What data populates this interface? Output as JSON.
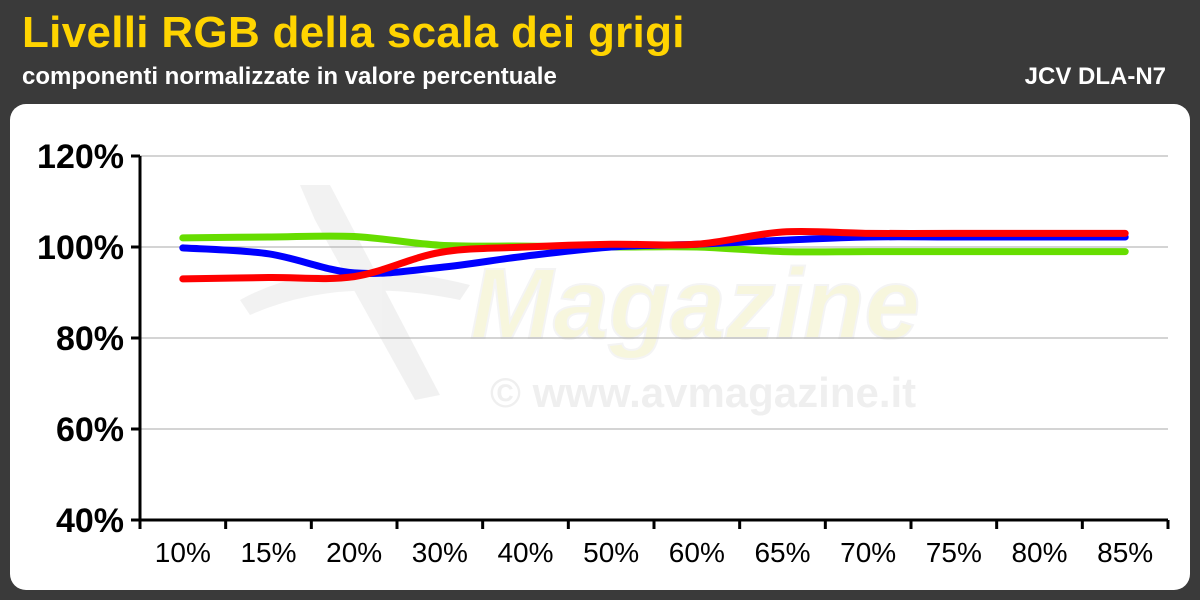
{
  "header": {
    "title": "Livelli RGB della scala dei grigi",
    "subtitle": "componenti normalizzate in valore percentuale",
    "model": "JCV DLA-N7"
  },
  "watermark": {
    "brand": "Magazine",
    "url": "© www.avmagazine.it"
  },
  "chart_data": {
    "type": "line",
    "title": "Livelli RGB della scala dei grigi",
    "subtitle": "componenti normalizzate in valore percentuale",
    "categories": [
      "10%",
      "15%",
      "20%",
      "30%",
      "40%",
      "50%",
      "60%",
      "65%",
      "70%",
      "75%",
      "80%",
      "85%"
    ],
    "yticks": [
      "120%",
      "100%",
      "80%",
      "60%",
      "40%"
    ],
    "ylim": [
      40,
      120
    ],
    "grid": true,
    "series": [
      {
        "color": "#66dd00",
        "values": [
          102,
          102.2,
          102.3,
          100.4,
          100.2,
          100,
          100,
          99,
          99,
          99,
          99,
          99
        ]
      },
      {
        "color": "#0000ff",
        "values": [
          99.8,
          98.5,
          94.3,
          95.5,
          98,
          100,
          100.6,
          101.5,
          102.2,
          102.2,
          102.2,
          102.2
        ]
      },
      {
        "color": "#ff0000",
        "values": [
          93,
          93.3,
          93.5,
          98.8,
          100,
          100.6,
          100.6,
          103.3,
          103,
          103,
          103,
          103
        ]
      }
    ]
  }
}
